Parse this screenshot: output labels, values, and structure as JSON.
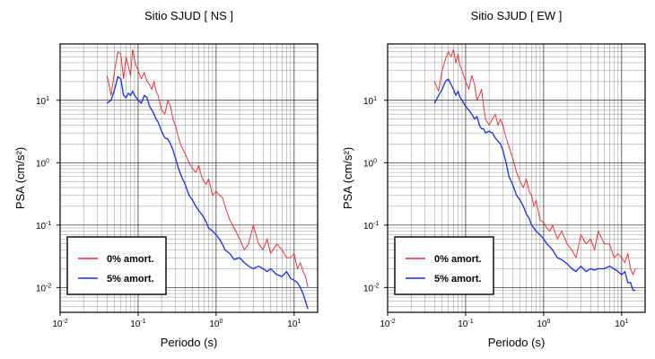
{
  "colors": {
    "undamped": "#e8262a",
    "damped": "#1a2fe0",
    "grid": "#000000"
  },
  "chart_data": [
    {
      "type": "line",
      "title": "Sitio SJUD [ NS ]",
      "xlabel": "Periodo (s)",
      "ylabel": "PSA (cm/s²)",
      "xscale": "log",
      "yscale": "log",
      "xlim": [
        0.01,
        20
      ],
      "ylim": [
        0.004,
        80
      ],
      "xticks": [
        {
          "base": "10",
          "exp": "-2"
        },
        {
          "base": "10",
          "exp": "-1"
        },
        {
          "base": "10",
          "exp": "0"
        },
        {
          "base": "10",
          "exp": "1"
        }
      ],
      "yticks": [
        {
          "base": "10",
          "exp": "-2"
        },
        {
          "base": "10",
          "exp": "-1"
        },
        {
          "base": "10",
          "exp": "0"
        },
        {
          "base": "10",
          "exp": "1"
        }
      ],
      "grid": true,
      "legend": "bottom-left",
      "series": [
        {
          "name": "0% amort.",
          "x": [
            0.04,
            0.045,
            0.05,
            0.055,
            0.06,
            0.065,
            0.07,
            0.075,
            0.08,
            0.085,
            0.09,
            0.095,
            0.1,
            0.11,
            0.12,
            0.13,
            0.14,
            0.15,
            0.16,
            0.17,
            0.18,
            0.2,
            0.22,
            0.24,
            0.26,
            0.28,
            0.3,
            0.33,
            0.36,
            0.4,
            0.45,
            0.5,
            0.55,
            0.6,
            0.65,
            0.7,
            0.75,
            0.8,
            0.9,
            1.0,
            1.1,
            1.2,
            1.3,
            1.5,
            1.7,
            2.0,
            2.3,
            2.6,
            3.0,
            3.5,
            4.0,
            4.5,
            5.0,
            6.0,
            7.0,
            8.0,
            9.0,
            10.0,
            11.0,
            12.0,
            13.0,
            14.0,
            15.0
          ],
          "y": [
            25,
            12,
            30,
            60,
            55,
            22,
            50,
            35,
            25,
            65,
            45,
            35,
            30,
            22,
            28,
            20,
            18,
            15,
            20,
            14,
            12,
            7,
            6,
            10,
            8,
            5,
            4,
            2.5,
            1.8,
            1.4,
            1.0,
            0.8,
            0.7,
            0.9,
            0.6,
            0.5,
            0.45,
            0.55,
            0.3,
            0.35,
            0.3,
            0.28,
            0.2,
            0.12,
            0.09,
            0.06,
            0.04,
            0.05,
            0.1,
            0.05,
            0.04,
            0.06,
            0.035,
            0.05,
            0.04,
            0.03,
            0.03,
            0.035,
            0.02,
            0.025,
            0.018,
            0.015,
            0.01
          ]
        },
        {
          "name": "5% amort.",
          "x": [
            0.04,
            0.045,
            0.05,
            0.055,
            0.06,
            0.065,
            0.07,
            0.075,
            0.08,
            0.085,
            0.09,
            0.095,
            0.1,
            0.11,
            0.12,
            0.13,
            0.14,
            0.15,
            0.16,
            0.17,
            0.18,
            0.2,
            0.22,
            0.24,
            0.26,
            0.28,
            0.3,
            0.33,
            0.36,
            0.4,
            0.45,
            0.5,
            0.55,
            0.6,
            0.65,
            0.7,
            0.75,
            0.8,
            0.9,
            1.0,
            1.1,
            1.2,
            1.3,
            1.5,
            1.7,
            2.0,
            2.3,
            2.6,
            3.0,
            3.5,
            4.0,
            4.5,
            5.0,
            6.0,
            7.0,
            8.0,
            9.0,
            10.0,
            11.0,
            12.0,
            13.0,
            14.0,
            15.0
          ],
          "y": [
            9,
            10,
            15,
            24,
            22,
            12,
            11,
            13,
            12,
            14,
            12,
            11,
            10,
            9,
            12,
            11,
            8,
            7,
            6,
            5,
            4.5,
            3.2,
            2.5,
            2.4,
            2.0,
            1.6,
            1.2,
            0.8,
            0.6,
            0.45,
            0.3,
            0.25,
            0.2,
            0.17,
            0.15,
            0.13,
            0.11,
            0.09,
            0.08,
            0.07,
            0.06,
            0.05,
            0.04,
            0.035,
            0.028,
            0.03,
            0.025,
            0.022,
            0.02,
            0.022,
            0.02,
            0.018,
            0.02,
            0.016,
            0.015,
            0.018,
            0.014,
            0.013,
            0.012,
            0.01,
            0.008,
            0.006,
            0.0045
          ]
        }
      ]
    },
    {
      "type": "line",
      "title": "Sitio SJUD [ EW ]",
      "xlabel": "Periodo (s)",
      "ylabel": "PSA (cm/s²)",
      "xscale": "log",
      "yscale": "log",
      "xlim": [
        0.01,
        20
      ],
      "ylim": [
        0.004,
        80
      ],
      "xticks": [
        {
          "base": "10",
          "exp": "-2"
        },
        {
          "base": "10",
          "exp": "-1"
        },
        {
          "base": "10",
          "exp": "0"
        },
        {
          "base": "10",
          "exp": "1"
        }
      ],
      "yticks": [
        {
          "base": "10",
          "exp": "-2"
        },
        {
          "base": "10",
          "exp": "-1"
        },
        {
          "base": "10",
          "exp": "0"
        },
        {
          "base": "10",
          "exp": "1"
        }
      ],
      "grid": true,
      "legend": "bottom-left",
      "series": [
        {
          "name": "0% amort.",
          "x": [
            0.04,
            0.045,
            0.05,
            0.055,
            0.06,
            0.065,
            0.07,
            0.075,
            0.08,
            0.085,
            0.09,
            0.1,
            0.11,
            0.12,
            0.13,
            0.14,
            0.15,
            0.16,
            0.17,
            0.18,
            0.2,
            0.22,
            0.24,
            0.26,
            0.28,
            0.3,
            0.33,
            0.36,
            0.4,
            0.45,
            0.5,
            0.55,
            0.6,
            0.65,
            0.7,
            0.75,
            0.8,
            0.9,
            1.0,
            1.1,
            1.2,
            1.3,
            1.5,
            1.7,
            2.0,
            2.3,
            2.6,
            3.0,
            3.5,
            4.0,
            4.5,
            5.0,
            6.0,
            7.0,
            8.0,
            9.0,
            10.0,
            11.0,
            12.0,
            13.0,
            14.0,
            15.0
          ],
          "y": [
            20,
            14,
            30,
            45,
            60,
            50,
            65,
            40,
            55,
            35,
            30,
            20,
            15,
            25,
            18,
            10,
            12,
            15,
            8,
            5,
            4,
            5,
            6,
            4,
            5,
            4,
            2.5,
            1.8,
            1.2,
            0.7,
            0.5,
            0.4,
            0.55,
            0.35,
            0.3,
            0.2,
            0.25,
            0.12,
            0.11,
            0.09,
            0.08,
            0.1,
            0.06,
            0.08,
            0.05,
            0.04,
            0.03,
            0.07,
            0.05,
            0.06,
            0.04,
            0.08,
            0.05,
            0.05,
            0.03,
            0.035,
            0.03,
            0.025,
            0.035,
            0.02,
            0.016,
            0.02
          ]
        },
        {
          "name": "5% amort.",
          "x": [
            0.04,
            0.045,
            0.05,
            0.055,
            0.06,
            0.065,
            0.07,
            0.075,
            0.08,
            0.085,
            0.09,
            0.1,
            0.11,
            0.12,
            0.13,
            0.14,
            0.15,
            0.16,
            0.17,
            0.18,
            0.2,
            0.22,
            0.24,
            0.26,
            0.28,
            0.3,
            0.33,
            0.36,
            0.4,
            0.45,
            0.5,
            0.55,
            0.6,
            0.65,
            0.7,
            0.75,
            0.8,
            0.9,
            1.0,
            1.1,
            1.2,
            1.3,
            1.5,
            1.7,
            2.0,
            2.3,
            2.6,
            3.0,
            3.5,
            4.0,
            4.5,
            5.0,
            6.0,
            7.0,
            8.0,
            9.0,
            10.0,
            11.0,
            12.0,
            13.0,
            14.0,
            15.0
          ],
          "y": [
            9,
            12,
            15,
            20,
            22,
            18,
            15,
            12,
            14,
            11,
            10,
            8,
            7,
            6,
            5,
            5.5,
            4,
            3.5,
            3.5,
            3,
            3.2,
            3,
            2.5,
            2.2,
            2,
            1.6,
            1.0,
            0.6,
            0.45,
            0.3,
            0.25,
            0.2,
            0.15,
            0.13,
            0.1,
            0.09,
            0.08,
            0.07,
            0.06,
            0.05,
            0.045,
            0.04,
            0.03,
            0.028,
            0.024,
            0.02,
            0.018,
            0.022,
            0.018,
            0.02,
            0.019,
            0.02,
            0.02,
            0.022,
            0.02,
            0.018,
            0.016,
            0.018,
            0.012,
            0.012,
            0.009,
            0.009
          ]
        }
      ]
    }
  ]
}
